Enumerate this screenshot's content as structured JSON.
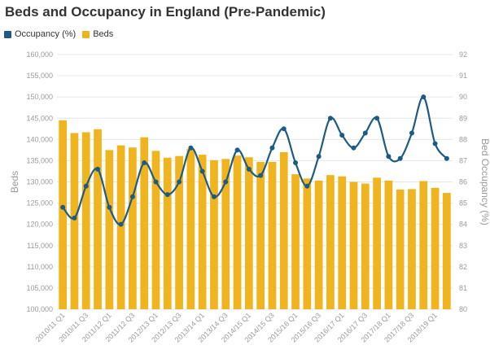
{
  "title": "Beds and Occupancy in England (Pre-Pandemic)",
  "colors": {
    "beds": "#f0b51e",
    "occupancy": "#1d5b82",
    "grid": "#e6e6e6",
    "axis_text": "#9a9a9a"
  },
  "chart_data": {
    "type": "bar",
    "title": "Beds and Occupancy in England (Pre-Pandemic)",
    "legend": [
      "Occupancy (%)",
      "Beds"
    ],
    "legend_position": "top-left",
    "grid": true,
    "xlabel": "",
    "categories": [
      "2010/11 Q1",
      "2010/11 Q2",
      "2010/11 Q3",
      "2010/11 Q4",
      "2011/12 Q1",
      "2011/12 Q2",
      "2011/12 Q3",
      "2011/12 Q4",
      "2012/13 Q1",
      "2012/13 Q2",
      "2012/13 Q3",
      "2012/13 Q4",
      "2013/14 Q1",
      "2013/14 Q2",
      "2013/14 Q3",
      "2013/14 Q4",
      "2014/15 Q1",
      "2014/15 Q2",
      "2014/15 Q3",
      "2014/15 Q4",
      "2015/16 Q1",
      "2015/16 Q2",
      "2015/16 Q3",
      "2015/16 Q4",
      "2016/17 Q1",
      "2016/17 Q2",
      "2016/17 Q3",
      "2016/17 Q4",
      "2017/18 Q1",
      "2017/18 Q2",
      "2017/18 Q3",
      "2017/18 Q4",
      "2018/19 Q1",
      "2018/19 Q2"
    ],
    "x_tick_labels": [
      "2010/11 Q1",
      "2010/11 Q3",
      "2011/12 Q1",
      "2011/12 Q3",
      "2012/13 Q1",
      "2012/13 Q3",
      "2013/14 Q1",
      "2013/14 Q3",
      "2014/15 Q1",
      "2014/15 Q3",
      "2015/16 Q1",
      "2015/16 Q3",
      "2016/17 Q1",
      "2016/17 Q3",
      "2017/18 Q1",
      "2017/18 Q3",
      "2018/19 Q1"
    ],
    "series": [
      {
        "name": "Beds",
        "axis": "left",
        "type": "bar",
        "values": [
          144500,
          141500,
          141700,
          142400,
          137500,
          138600,
          138100,
          140500,
          137300,
          135700,
          136100,
          137800,
          136400,
          135100,
          135400,
          136200,
          135800,
          134700,
          134700,
          137000,
          131800,
          130800,
          130300,
          131600,
          131300,
          130000,
          129600,
          131000,
          130300,
          128200,
          128300,
          130200,
          128600,
          127400
        ]
      },
      {
        "name": "Occupancy (%)",
        "axis": "right",
        "type": "line",
        "values": [
          84.8,
          84.3,
          85.8,
          86.6,
          84.8,
          84.0,
          85.3,
          86.9,
          86.0,
          85.4,
          86.0,
          87.6,
          86.5,
          85.3,
          86.0,
          87.5,
          86.6,
          86.3,
          87.6,
          88.5,
          86.9,
          85.8,
          87.2,
          89.0,
          88.2,
          87.6,
          88.3,
          89.0,
          87.2,
          87.1,
          88.3,
          90.0,
          87.8,
          87.1
        ]
      }
    ],
    "y_left": {
      "label": "Beds",
      "min": 100000,
      "max": 160000,
      "ticks": [
        "100,000",
        "105,000",
        "110,000",
        "115,000",
        "120,000",
        "125,000",
        "130,000",
        "135,000",
        "140,000",
        "145,000",
        "150,000",
        "155,000",
        "160,000"
      ]
    },
    "y_right": {
      "label": "Bed Occupancy (%)",
      "min": 80,
      "max": 92,
      "ticks": [
        "80",
        "81",
        "82",
        "83",
        "84",
        "85",
        "86",
        "87",
        "88",
        "89",
        "90",
        "91",
        "92"
      ]
    }
  }
}
